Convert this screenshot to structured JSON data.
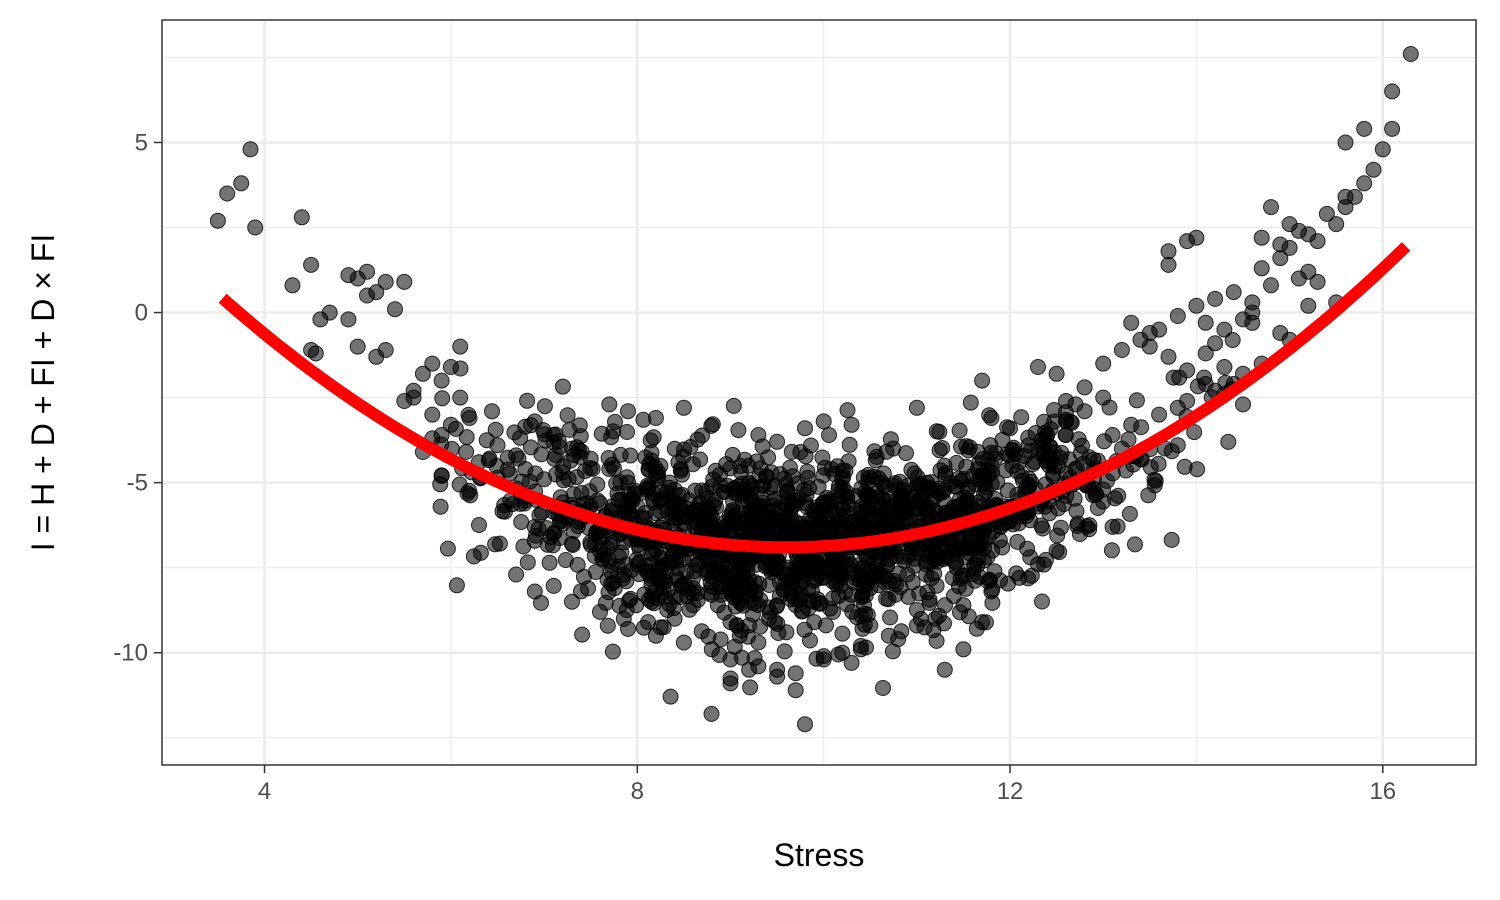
{
  "chart_data": {
    "type": "scatter",
    "title": "",
    "xlabel": "Stress",
    "ylabel": "I = H + D + FI + D × FI",
    "xlim": [
      2.9,
      17.0
    ],
    "ylim": [
      -13.3,
      8.6
    ],
    "x_ticks": [
      4,
      8,
      12,
      16
    ],
    "y_ticks": [
      5,
      0,
      -5,
      -10
    ],
    "x_tick_labels": [
      "4",
      "8",
      "12",
      "16"
    ],
    "y_tick_labels": [
      "5",
      "0",
      "-5",
      "-10"
    ],
    "grid": true,
    "legend": "none",
    "colors": {
      "points": "#000000",
      "fit_line": "#ff0000",
      "grid": "#ebebeb",
      "panel_border": "#333333"
    },
    "points_opacity": 0.55,
    "fit_curve": {
      "type": "quadratic",
      "equation": {
        "a": 0.2,
        "h": 9.6,
        "k": -6.9
      },
      "x_range": [
        3.55,
        16.25
      ]
    },
    "series": [
      {
        "type": "scatter",
        "x": [
          3.5,
          3.6,
          3.75,
          3.85,
          3.9,
          4.4,
          4.5,
          4.5,
          4.55,
          4.6,
          4.3,
          4.7,
          4.9,
          5.0,
          5.1,
          5.2,
          5.3,
          5.1,
          5.4,
          5.5,
          5.0,
          4.9,
          5.2,
          5.3,
          5.6,
          5.7,
          5.8,
          5.9,
          6.0,
          5.5,
          5.6,
          5.8,
          6.0,
          6.1,
          5.9,
          6.2,
          6.1,
          5.7,
          5.8,
          5.9,
          6.3,
          6.5,
          6.7,
          6.8,
          7.0,
          7.2,
          7.4,
          7.6,
          7.8,
          8.0,
          8.2,
          8.5,
          6.9,
          7.1,
          7.3,
          7.5,
          7.7,
          7.9,
          8.1,
          8.3,
          8.4,
          8.6,
          8.8,
          9.0,
          9.2,
          9.4,
          9.6,
          9.8,
          10.0,
          10.2,
          10.4,
          10.6,
          10.8,
          11.0,
          11.2,
          11.4,
          11.6,
          11.8,
          12.0,
          12.2,
          12.4,
          12.6,
          12.8,
          13.0,
          6.9,
          7.1,
          7.3,
          7.6,
          7.7,
          8.1,
          8.3,
          8.6,
          8.8,
          9.1,
          9.3,
          9.5,
          9.7,
          9.9,
          10.1,
          10.3,
          10.5,
          10.7,
          10.9,
          11.1,
          11.3,
          11.5,
          11.7,
          11.9,
          12.1,
          12.3,
          12.5,
          12.7,
          6.7,
          6.9,
          7.3,
          7.6,
          7.9,
          8.2,
          8.5,
          8.8,
          9.0,
          9.3,
          9.5,
          9.7,
          10.0,
          10.2,
          10.4,
          10.7,
          11.0,
          11.2,
          11.5,
          11.8,
          12.1,
          12.3,
          12.5,
          13.1,
          9.0,
          9.2,
          9.5,
          9.7,
          9.8,
          10.0,
          10.3,
          10.4,
          9.1,
          9.3,
          9.6,
          9.9,
          8.4,
          8.6,
          8.9,
          9.2,
          10.1,
          10.5,
          10.8,
          11.3,
          11.5,
          11.7,
          9.75,
          9.5,
          9.3,
          9.8,
          8.5,
          8.2,
          7.9,
          7.7,
          10.0,
          10.3,
          11.0,
          11.7,
          12.3,
          12.5,
          12.6,
          12.8,
          13.0,
          13.2,
          13.4,
          13.5,
          13.6,
          13.8,
          14.0,
          14.2,
          14.4,
          14.6,
          13.3,
          13.5,
          13.7,
          13.9,
          14.1,
          14.3,
          14.5,
          13.1,
          13.3,
          13.6,
          13.9,
          14.2,
          14.5,
          14.7,
          13.2,
          13.4,
          13.8,
          12.7,
          12.9,
          13.0,
          12.1,
          12.3,
          12.6,
          12.0,
          11.8,
          13.7,
          13.9,
          14.1,
          14.7,
          14.9,
          15.0,
          15.1,
          15.2,
          15.3,
          15.5,
          15.6,
          15.7,
          15.8,
          15.9,
          16.0,
          16.1,
          16.1,
          16.3,
          14.8,
          15.0,
          15.2,
          15.4,
          15.6,
          14.3,
          14.5,
          14.6,
          14.8,
          15.1,
          15.3,
          15.5,
          14.7,
          14.9,
          15.0,
          14.1,
          14.3,
          14.4,
          14.0,
          13.7,
          15.8,
          15.6,
          15.2,
          14.2,
          13.8,
          14.6,
          14.9
        ],
        "y": [
          2.7,
          3.5,
          3.8,
          4.8,
          2.5,
          2.8,
          1.4,
          -1.1,
          -1.2,
          -0.2,
          0.8,
          0.0,
          1.1,
          1.0,
          0.5,
          0.6,
          0.9,
          1.2,
          0.1,
          0.9,
          -1.0,
          -0.2,
          -1.3,
          -1.1,
          -2.5,
          -1.8,
          -1.5,
          -2.0,
          -1.6,
          -2.6,
          -2.3,
          -3.0,
          -3.3,
          -2.5,
          -3.6,
          -3.1,
          -1.0,
          -4.1,
          -3.7,
          -4.8,
          -4.4,
          -3.9,
          -4.2,
          -4.6,
          -4.9,
          -4.7,
          -5.3,
          -5.6,
          -5.5,
          -5.7,
          -5.9,
          -6.2,
          -3.2,
          -3.6,
          -4.0,
          -4.3,
          -4.6,
          -5.0,
          -5.2,
          -5.5,
          -5.7,
          -5.9,
          -6.0,
          -6.2,
          -6.3,
          -6.4,
          -6.5,
          -6.5,
          -6.4,
          -6.3,
          -6.2,
          -6.0,
          -5.8,
          -5.6,
          -5.4,
          -5.1,
          -4.8,
          -4.5,
          -4.2,
          -3.9,
          -3.6,
          -3.2,
          -2.9,
          -2.5,
          -6.3,
          -6.5,
          -6.8,
          -7.0,
          -7.3,
          -7.6,
          -7.9,
          -8.1,
          -8.3,
          -8.5,
          -8.6,
          -8.6,
          -8.6,
          -8.5,
          -8.4,
          -8.3,
          -8.1,
          -7.9,
          -7.7,
          -7.4,
          -7.2,
          -6.9,
          -6.6,
          -6.3,
          -6.0,
          -5.7,
          -5.3,
          -5.0,
          -7.7,
          -8.2,
          -8.5,
          -8.8,
          -9.3,
          -9.5,
          -9.7,
          -9.9,
          -10.2,
          -10.4,
          -10.5,
          -10.6,
          -10.1,
          -10.0,
          -9.8,
          -9.5,
          -9.2,
          -9.0,
          -8.6,
          -8.2,
          -7.8,
          -7.4,
          -7.0,
          -6.3,
          -10.9,
          -10.5,
          -10.7,
          -11.1,
          -12.1,
          -10.2,
          -10.3,
          -9.9,
          -9.5,
          -9.7,
          -9.4,
          -9.1,
          -9.0,
          -8.6,
          -8.3,
          -8.0,
          -8.8,
          -9.2,
          -9.6,
          -10.5,
          -9.9,
          -9.1,
          -4.1,
          -3.8,
          -3.6,
          -3.4,
          -2.8,
          -3.1,
          -2.9,
          -2.7,
          -3.2,
          -3.3,
          -2.8,
          -2.0,
          -1.6,
          -1.8,
          -2.6,
          -2.2,
          -1.5,
          -1.1,
          -0.8,
          -1.0,
          -0.5,
          -0.1,
          0.2,
          0.4,
          0.6,
          0.0,
          -0.3,
          -0.6,
          -1.3,
          -1.7,
          -2.1,
          -2.4,
          -2.7,
          -3.6,
          -3.3,
          -3.0,
          -2.6,
          -2.3,
          -1.8,
          -1.5,
          -4.0,
          -4.3,
          -3.9,
          -4.6,
          -4.9,
          -5.2,
          -4.4,
          -4.0,
          -3.6,
          -3.4,
          -3.1,
          1.8,
          2.1,
          -0.3,
          1.3,
          1.6,
          1.9,
          2.4,
          1.2,
          2.1,
          2.6,
          3.1,
          3.4,
          3.8,
          4.2,
          4.8,
          5.4,
          6.5,
          7.6,
          3.1,
          2.6,
          2.3,
          2.9,
          5.0,
          -0.5,
          -0.2,
          0.3,
          0.8,
          1.0,
          0.9,
          0.3,
          2.2,
          2.0,
          -0.8,
          -1.2,
          -1.6,
          -2.1,
          2.2,
          1.4,
          5.4,
          3.4,
          0.2,
          -0.9,
          -2.8,
          -0.3,
          -0.6
        ]
      }
    ]
  }
}
